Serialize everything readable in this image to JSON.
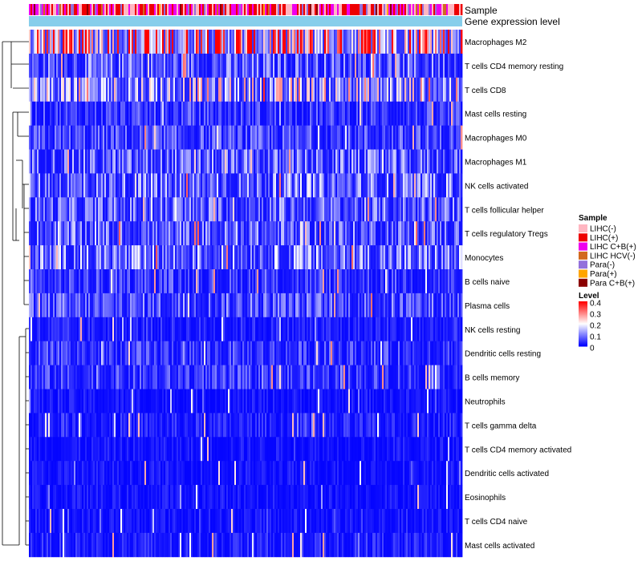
{
  "chart_data": {
    "type": "heatmap",
    "title": "",
    "annotation_tracks": [
      "Sample",
      "Gene expression level"
    ],
    "row_labels": [
      "Macrophages M2",
      "T cells CD4 memory resting",
      "T cells CD8",
      "Mast cells resting",
      "Macrophages M0",
      "Macrophages M1",
      "NK cells activated",
      "T cells follicular helper",
      "T cells regulatory  Tregs",
      "Monocytes",
      "B cells naive",
      "Plasma cells",
      "NK cells resting",
      "Dendritic cells resting",
      "B cells memory",
      "Neutrophils",
      "T cells gamma delta",
      "T cells CD4 memory activated",
      "Dendritic cells activated",
      "Eosinophils",
      "T cells CD4 naive",
      "Mast cells activated"
    ],
    "row_mean_levels": [
      0.27,
      0.08,
      0.15,
      0.05,
      0.06,
      0.08,
      0.09,
      0.08,
      0.08,
      0.1,
      0.05,
      0.07,
      0.03,
      0.05,
      0.05,
      0.02,
      0.03,
      0.02,
      0.02,
      0.02,
      0.02,
      0.03
    ],
    "sample_legend": {
      "title": "Sample",
      "items": [
        {
          "label": "LIHC(-)",
          "color": "#ffb6c1"
        },
        {
          "label": "LIHC(+)",
          "color": "#ee0000"
        },
        {
          "label": "LIHC C+B(+)",
          "color": "#ee00ee"
        },
        {
          "label": "LIHC HCV(-)",
          "color": "#d2691e"
        },
        {
          "label": "Para(-)",
          "color": "#9370db"
        },
        {
          "label": "Para(+)",
          "color": "#ffa500"
        },
        {
          "label": "Para C+B(+)",
          "color": "#8b0000"
        }
      ]
    },
    "level_legend": {
      "title": "Level",
      "ticks": [
        "0.4",
        "0.3",
        "0.2",
        "0.1",
        "0"
      ],
      "range": [
        0,
        0.4
      ],
      "colors": [
        "#0000ff",
        "#ffffff",
        "#ff0000"
      ]
    },
    "gene_expression_color": "#87ceeb"
  }
}
